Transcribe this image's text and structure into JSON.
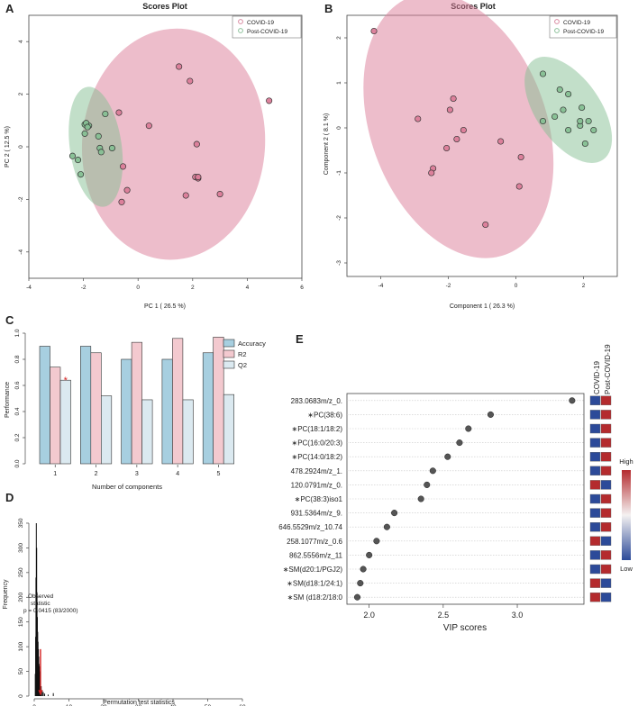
{
  "colors": {
    "covid": "#d98aa1",
    "covid_fill": "#db7c98",
    "post": "#8cc09a",
    "post_fill": "#86bf93",
    "acc": "#a7cfe0",
    "r2": "#f3c9cf",
    "q2": "#dbe9f0",
    "vip_high": "#b42b2e",
    "vip_low": "#2c4a99",
    "point": "#555555",
    "hist": "#111111",
    "observed": "#d42121"
  },
  "chart_data": [
    {
      "panel": "A",
      "type": "scatter",
      "title": "Scores Plot",
      "xlabel": "PC 1 ( 26.5 %)",
      "ylabel": "PC 2 ( 12.5 %)",
      "xlim": [
        -4,
        6
      ],
      "ylim": [
        -5,
        5
      ],
      "xticks": [
        "-4",
        "-2",
        "0",
        "2",
        "4",
        "6"
      ],
      "yticks": [
        "-4",
        "-2",
        "0",
        "2",
        "4"
      ],
      "legend": [
        "COVID-19",
        "Post-COVID-19"
      ],
      "series": [
        {
          "name": "COVID-19",
          "points": [
            [
              1.5,
              3.05
            ],
            [
              1.9,
              2.5
            ],
            [
              4.8,
              1.75
            ],
            [
              -0.7,
              1.3
            ],
            [
              0.4,
              0.8
            ],
            [
              2.15,
              0.1
            ],
            [
              -0.55,
              -0.75
            ],
            [
              2.1,
              -1.15
            ],
            [
              2.2,
              -1.2
            ],
            [
              2.2,
              -1.15
            ],
            [
              3.0,
              -1.8
            ],
            [
              1.75,
              -1.85
            ],
            [
              -0.4,
              -1.65
            ],
            [
              -0.6,
              -2.1
            ]
          ],
          "ellipse": {
            "cx": 1.3,
            "cy": 0.1,
            "rx": 3.35,
            "ry": 4.4,
            "angle": 4
          }
        },
        {
          "name": "Post-COVID-19",
          "points": [
            [
              -1.2,
              1.25
            ],
            [
              -1.95,
              0.85
            ],
            [
              -1.8,
              0.8
            ],
            [
              -1.9,
              0.9
            ],
            [
              -1.85,
              0.75
            ],
            [
              -1.95,
              0.5
            ],
            [
              -1.45,
              0.4
            ],
            [
              -0.95,
              -0.05
            ],
            [
              -1.4,
              -0.05
            ],
            [
              -1.35,
              -0.2
            ],
            [
              -2.4,
              -0.35
            ],
            [
              -2.2,
              -0.5
            ],
            [
              -2.1,
              -1.05
            ]
          ],
          "ellipse": {
            "cx": -1.55,
            "cy": 0.0,
            "rx": 0.95,
            "ry": 2.3,
            "angle": -8
          }
        }
      ]
    },
    {
      "panel": "B",
      "type": "scatter",
      "title": "Scores Plot",
      "xlabel": "Component 1 ( 26.3 %)",
      "ylabel": "Component 2 ( 8.1 %)",
      "xlim": [
        -5,
        3
      ],
      "ylim": [
        -3.3,
        2.5
      ],
      "xticks": [
        "-4",
        "-2",
        "0",
        "2"
      ],
      "yticks": [
        "-3",
        "-2",
        "-1",
        "0",
        "1",
        "2"
      ],
      "legend": [
        "COVID-19",
        "Post-COVID-19"
      ],
      "series": [
        {
          "name": "COVID-19",
          "points": [
            [
              -4.2,
              2.15
            ],
            [
              -1.85,
              0.65
            ],
            [
              -1.95,
              0.4
            ],
            [
              -2.9,
              0.2
            ],
            [
              -1.55,
              -0.05
            ],
            [
              -1.75,
              -0.25
            ],
            [
              -2.05,
              -0.45
            ],
            [
              -0.45,
              -0.3
            ],
            [
              -2.45,
              -0.9
            ],
            [
              -2.5,
              -1.0
            ],
            [
              0.15,
              -0.65
            ],
            [
              0.1,
              -1.3
            ],
            [
              -0.9,
              -2.15
            ]
          ],
          "ellipse": {
            "cx": -1.7,
            "cy": 0.05,
            "rx": 2.6,
            "ry": 3.05,
            "angle": -20
          }
        },
        {
          "name": "Post-COVID-19",
          "points": [
            [
              0.8,
              1.2
            ],
            [
              1.3,
              0.85
            ],
            [
              1.55,
              0.75
            ],
            [
              1.95,
              0.45
            ],
            [
              1.4,
              0.4
            ],
            [
              1.15,
              0.25
            ],
            [
              1.9,
              0.05
            ],
            [
              1.9,
              0.15
            ],
            [
              2.15,
              0.15
            ],
            [
              2.3,
              -0.05
            ],
            [
              1.55,
              -0.05
            ],
            [
              0.8,
              0.15
            ],
            [
              2.05,
              -0.35
            ]
          ],
          "ellipse": {
            "cx": 1.55,
            "cy": 0.4,
            "rx": 0.95,
            "ry": 1.35,
            "angle": -35
          }
        }
      ]
    },
    {
      "panel": "C",
      "type": "bar",
      "xlabel": "Number of components",
      "ylabel": "Performance",
      "categories": [
        "1",
        "2",
        "3",
        "4",
        "5"
      ],
      "ylim": [
        0,
        1.0
      ],
      "yticks": [
        "0.0",
        "0.2",
        "0.4",
        "0.6",
        "0.8",
        "1.0"
      ],
      "series": [
        {
          "name": "Accuracy",
          "values": [
            0.9,
            0.9,
            0.8,
            0.8,
            0.85
          ]
        },
        {
          "name": "R2",
          "values": [
            0.74,
            0.85,
            0.93,
            0.96,
            0.97
          ]
        },
        {
          "name": "Q2",
          "values": [
            0.64,
            0.52,
            0.49,
            0.49,
            0.53
          ]
        }
      ],
      "best_marker": "*"
    },
    {
      "panel": "D",
      "type": "histogram",
      "xlabel": "Permutation test statistics",
      "ylabel": "Frequency",
      "xlim": [
        0,
        60
      ],
      "ylim": [
        0,
        370
      ],
      "xticks": [
        "0",
        "10",
        "20",
        "30",
        "40",
        "50",
        "60"
      ],
      "yticks": [
        "0",
        "50",
        "100",
        "150",
        "200",
        "250",
        "300",
        "350"
      ],
      "bins": [
        [
          0.3,
          45
        ],
        [
          0.4,
          120
        ],
        [
          0.5,
          240
        ],
        [
          0.6,
          350
        ],
        [
          0.7,
          300
        ],
        [
          0.8,
          210
        ],
        [
          0.9,
          160
        ],
        [
          1.0,
          130
        ],
        [
          1.1,
          110
        ],
        [
          1.2,
          95
        ],
        [
          1.3,
          80
        ],
        [
          1.4,
          65
        ],
        [
          1.5,
          60
        ],
        [
          1.6,
          50
        ],
        [
          1.7,
          40
        ],
        [
          1.8,
          32
        ],
        [
          2.0,
          20
        ],
        [
          2.3,
          12
        ],
        [
          2.6,
          8
        ],
        [
          3.0,
          5
        ],
        [
          4.0,
          3
        ],
        [
          5.5,
          6
        ]
      ],
      "observed_value": 1.8,
      "observed_label": "Observed",
      "statistic_label": "statistic",
      "p_label": "p = 0.0415 (83/2000)"
    },
    {
      "panel": "E",
      "type": "dot",
      "xlabel": "VIP scores",
      "xlim": [
        1.85,
        3.45
      ],
      "xticks": [
        "2.0",
        "2.5",
        "3.0"
      ],
      "heat_header": [
        "COVID-19",
        "Post-COVID-19"
      ],
      "legend_high": "High",
      "legend_low": "Low",
      "features": [
        {
          "label": "283.0683m/z_0.",
          "star": false,
          "vip": 3.37,
          "heat": [
            "low",
            "high"
          ]
        },
        {
          "label": "PC(38:6)",
          "star": true,
          "vip": 2.82,
          "heat": [
            "low",
            "high"
          ]
        },
        {
          "label": "PC(18:1/18:2)",
          "star": true,
          "vip": 2.67,
          "heat": [
            "low",
            "high"
          ]
        },
        {
          "label": "PC(16:0/20:3)",
          "star": true,
          "vip": 2.61,
          "heat": [
            "low",
            "high"
          ]
        },
        {
          "label": "PC(14:0/18:2)",
          "star": true,
          "vip": 2.53,
          "heat": [
            "low",
            "high"
          ]
        },
        {
          "label": "478.2924m/z_1.",
          "star": false,
          "vip": 2.43,
          "heat": [
            "low",
            "high"
          ]
        },
        {
          "label": "120.0791m/z_0.",
          "star": false,
          "vip": 2.39,
          "heat": [
            "high",
            "low"
          ]
        },
        {
          "label": "PC(38:3)iso1",
          "star": true,
          "vip": 2.35,
          "heat": [
            "low",
            "high"
          ]
        },
        {
          "label": "931.5364m/z_9.",
          "star": false,
          "vip": 2.17,
          "heat": [
            "low",
            "high"
          ]
        },
        {
          "label": "646.5529m/z_10.74",
          "star": false,
          "vip": 2.12,
          "heat": [
            "low",
            "high"
          ]
        },
        {
          "label": "258.1077m/z_0.6",
          "star": false,
          "vip": 2.05,
          "heat": [
            "high",
            "low"
          ]
        },
        {
          "label": "862.5556m/z_11",
          "star": false,
          "vip": 2.0,
          "heat": [
            "low",
            "high"
          ]
        },
        {
          "label": "SM(d20:1/PGJ2)",
          "star": true,
          "vip": 1.96,
          "heat": [
            "low",
            "high"
          ]
        },
        {
          "label": "SM(d18:1/24:1)",
          "star": true,
          "vip": 1.94,
          "heat": [
            "high",
            "low"
          ]
        },
        {
          "label": "SM (d18:2/18:0",
          "star": true,
          "vip": 1.92,
          "heat": [
            "high",
            "low"
          ]
        }
      ]
    }
  ]
}
